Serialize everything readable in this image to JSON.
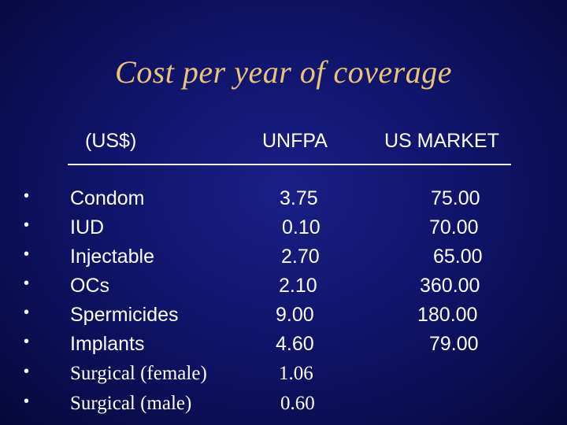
{
  "slide": {
    "title": "Cost per year of coverage",
    "headers": {
      "unit": "(US$)",
      "col1": "UNFPA",
      "col2": "US MARKET"
    },
    "bullet_glyph": "•",
    "rows": [
      {
        "method": "Condom",
        "unfpa": "3.75",
        "us_market": "75.00"
      },
      {
        "method": "IUD",
        "unfpa": "0.10",
        "us_market": "70.00"
      },
      {
        "method": "Injectable",
        "unfpa": "2.70",
        "us_market": "65.00"
      },
      {
        "method": "OCs",
        "unfpa": "2.10",
        "us_market": "360.00"
      },
      {
        "method": "Spermicides",
        "unfpa": "9.00",
        "us_market": "180.00"
      },
      {
        "method": "Implants",
        "unfpa": "4.60",
        "us_market": "79.00"
      },
      {
        "method": "Surgical (female)",
        "unfpa": "1.06",
        "us_market": ""
      },
      {
        "method": "Surgical (male)",
        "unfpa": "0.60",
        "us_market": ""
      }
    ],
    "colors": {
      "title": "#e8c37a",
      "text": "#ffffff",
      "background": "#10146a"
    }
  }
}
